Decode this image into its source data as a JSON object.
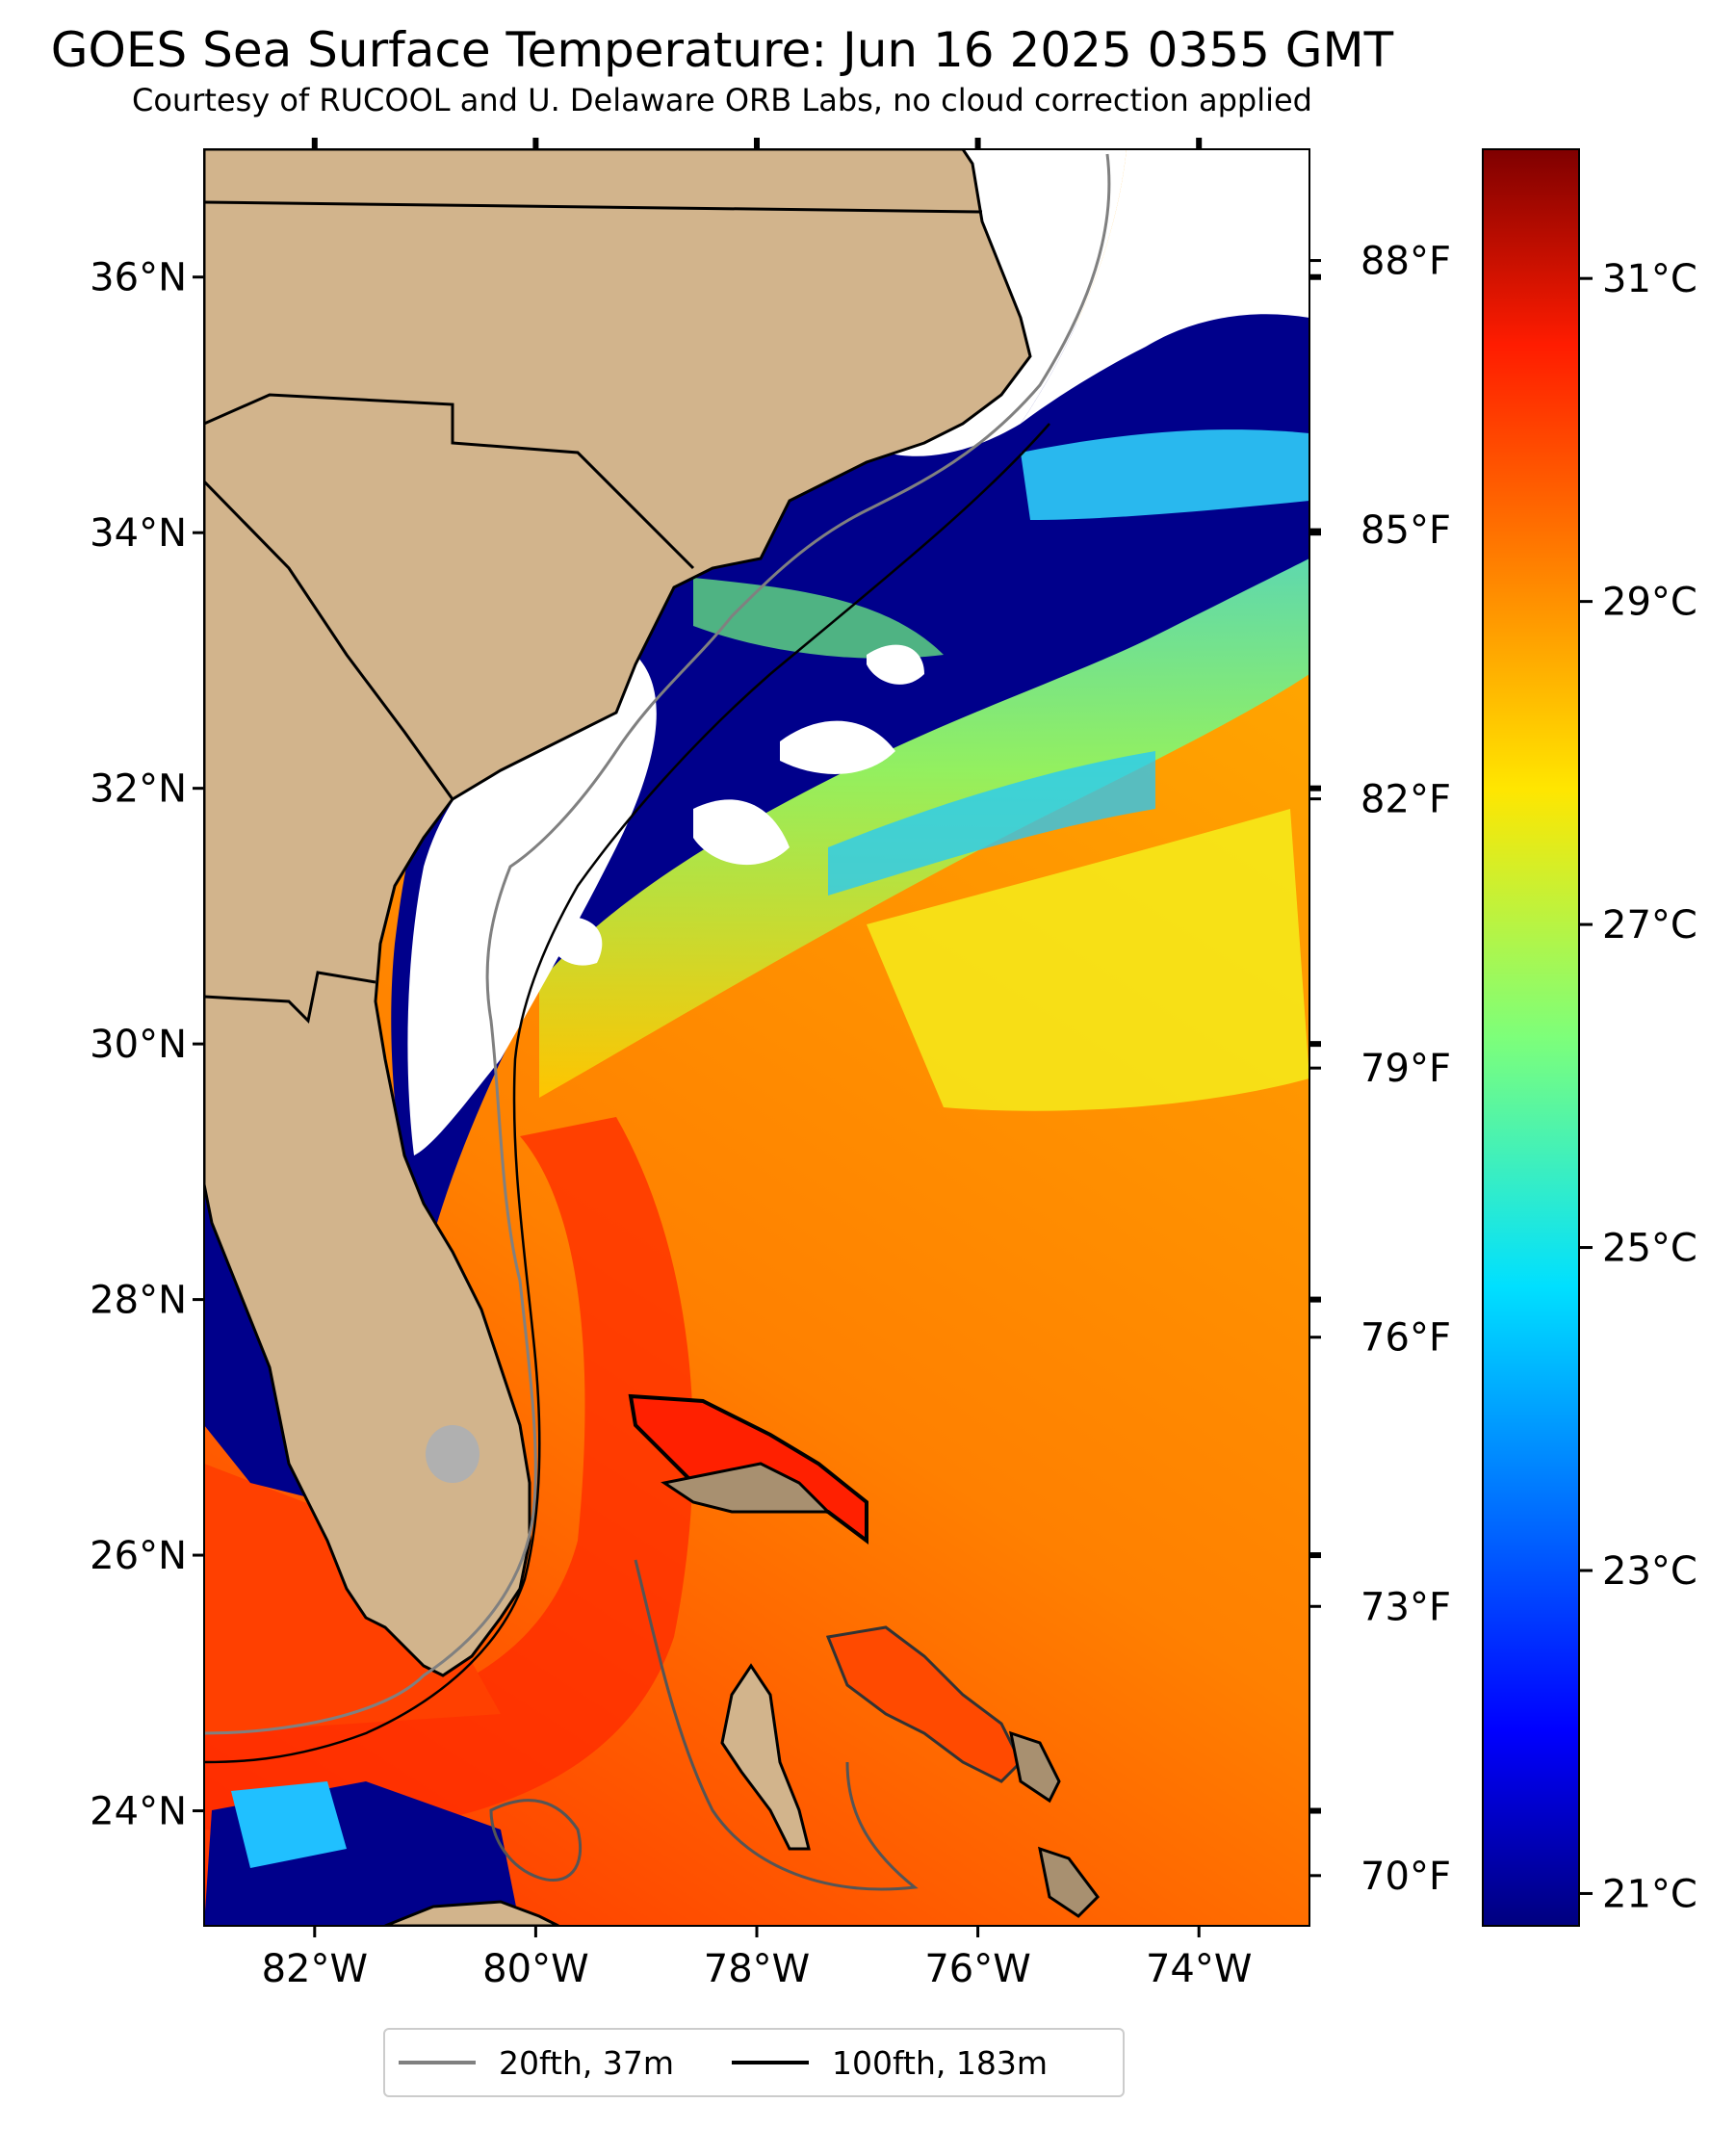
{
  "header": {
    "title": "GOES Sea Surface Temperature: Jun 16 2025 0355 GMT",
    "subtitle": "Courtesy of RUCOOL and U. Delaware ORB Labs, no cloud correction applied"
  },
  "map": {
    "lat_range": [
      23.1,
      37.0
    ],
    "lon_range": [
      -83.0,
      -73.0
    ],
    "lat_labels": [
      "24°N",
      "26°N",
      "28°N",
      "30°N",
      "32°N",
      "34°N",
      "36°N"
    ],
    "lat_values": [
      24,
      26,
      28,
      30,
      32,
      34,
      36
    ],
    "lon_labels": [
      "82°W",
      "80°W",
      "78°W",
      "76°W",
      "74°W"
    ],
    "lon_values": [
      -82,
      -80,
      -78,
      -76,
      -74
    ],
    "fahrenheit_labels": [
      "70°F",
      "73°F",
      "76°F",
      "79°F",
      "82°F",
      "85°F",
      "88°F"
    ],
    "fahrenheit_values": [
      70,
      73,
      76,
      79,
      82,
      85,
      88
    ],
    "land_color": "#d2b48c",
    "cloud_color": "#ffffff",
    "cold_color": "#00008b"
  },
  "colorbar": {
    "colormap": "jet",
    "range_c": [
      20.8,
      31.8
    ],
    "labels": [
      "21°C",
      "23°C",
      "25°C",
      "27°C",
      "29°C",
      "31°C"
    ],
    "values": [
      21,
      23,
      25,
      27,
      29,
      31
    ]
  },
  "legend": {
    "items": [
      {
        "label": "20fth, 37m",
        "color": "#808080"
      },
      {
        "label": "100fth, 183m",
        "color": "#000000"
      }
    ]
  }
}
